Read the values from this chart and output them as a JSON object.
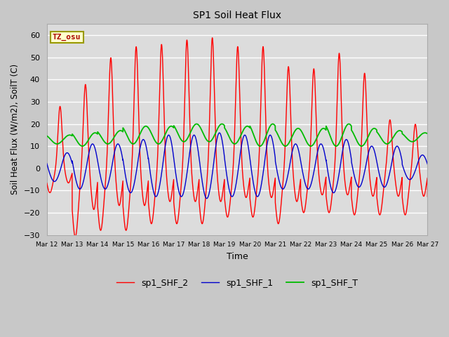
{
  "title": "SP1 Soil Heat Flux",
  "xlabel": "Time",
  "ylabel": "Soil Heat Flux (W/m2), SoilT (C)",
  "ylim": [
    -30,
    65
  ],
  "yticks": [
    -30,
    -20,
    -10,
    0,
    10,
    20,
    30,
    40,
    50,
    60
  ],
  "fig_bg": "#c8c8c8",
  "plot_bg": "#dcdcdc",
  "grid_color": "#ffffff",
  "legend_labels": [
    "sp1_SHF_2",
    "sp1_SHF_1",
    "sp1_SHF_T"
  ],
  "legend_colors": [
    "#ff0000",
    "#0000cc",
    "#00bb00"
  ],
  "tz_label": "TZ_osu",
  "x_start_day": 12,
  "x_end_day": 27,
  "x_tick_days": [
    12,
    13,
    14,
    15,
    16,
    17,
    18,
    19,
    20,
    21,
    22,
    23,
    24,
    25,
    26,
    27
  ],
  "x_tick_labels": [
    "Mar 12",
    "Mar 13",
    "Mar 14",
    "Mar 15",
    "Mar 16",
    "Mar 17",
    "Mar 18",
    "Mar 19",
    "Mar 20",
    "Mar 21",
    "Mar 22",
    "Mar 23",
    "Mar 24",
    "Mar 25",
    "Mar 26",
    "Mar 27"
  ]
}
